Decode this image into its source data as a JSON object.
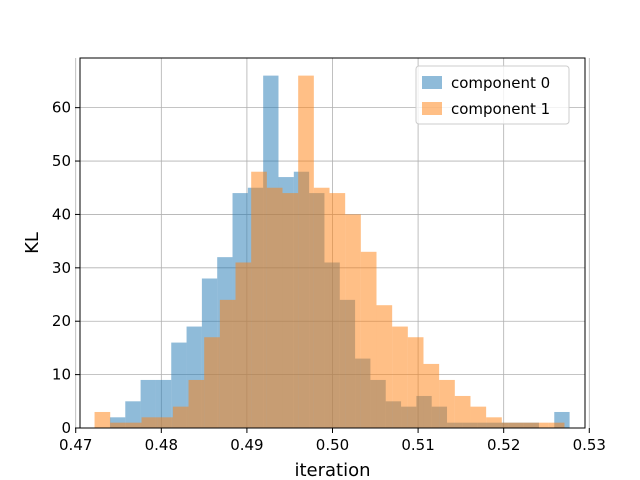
{
  "chart_data": {
    "type": "histogram",
    "title": "",
    "xlabel": "iteration",
    "ylabel": "KL",
    "xlim": [
      0.4705,
      0.5295
    ],
    "ylim": [
      0,
      69.3
    ],
    "xticks": [
      0.47,
      0.48,
      0.49,
      0.5,
      0.51,
      0.52,
      0.53
    ],
    "xtick_labels": [
      "0.47",
      "0.48",
      "0.49",
      "0.50",
      "0.51",
      "0.52",
      "0.53"
    ],
    "yticks": [
      0,
      10,
      20,
      30,
      40,
      50,
      60
    ],
    "ytick_labels": [
      "0",
      "10",
      "20",
      "30",
      "40",
      "50",
      "60"
    ],
    "grid": true,
    "legend": {
      "position": "top-right"
    },
    "series": [
      {
        "name": "component 0",
        "color": "#1f77b4",
        "alpha": 0.5,
        "bin_start": 0.474,
        "bin_width": 0.00179,
        "counts": [
          2,
          5,
          9,
          9,
          16,
          19,
          28,
          32,
          44,
          45,
          66,
          47,
          48,
          44,
          31,
          24,
          13,
          9,
          5,
          4,
          6,
          4,
          1,
          1,
          1,
          1,
          1,
          1,
          0,
          3
        ]
      },
      {
        "name": "component 1",
        "color": "#ff7f0e",
        "alpha": 0.5,
        "bin_start": 0.4722,
        "bin_width": 0.00183,
        "counts": [
          3,
          1,
          1,
          2,
          2,
          4,
          9,
          17,
          24,
          31,
          48,
          45,
          44,
          66,
          45,
          44,
          40,
          33,
          23,
          19,
          17,
          12,
          9,
          6,
          4,
          2,
          1,
          1,
          1,
          1
        ]
      }
    ]
  }
}
